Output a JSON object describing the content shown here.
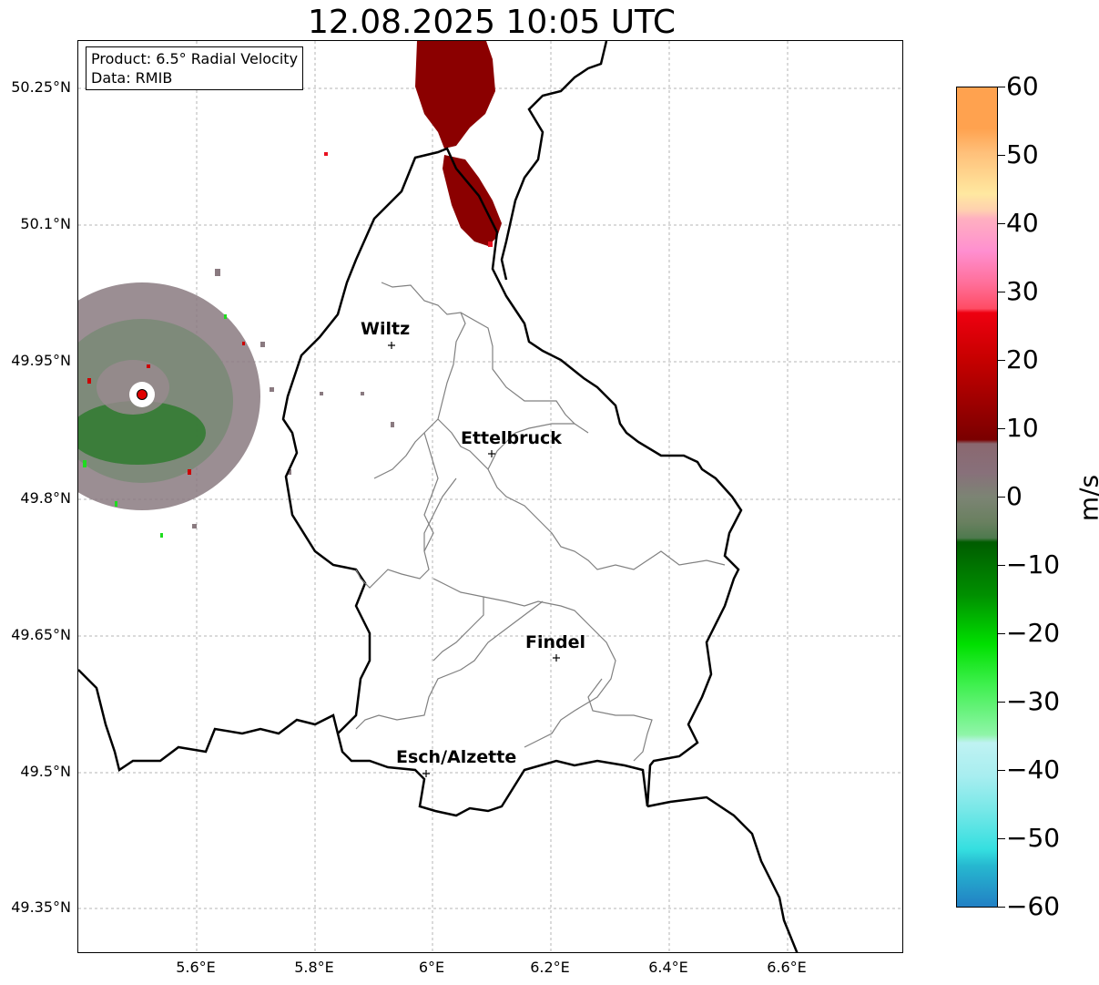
{
  "title": "12.08.2025 10:05 UTC",
  "info_box": {
    "product": "Product: 6.5° Radial Velocity",
    "source": "Data: RMIB"
  },
  "lat_ticks": [
    "50.25°N",
    "50.1°N",
    "49.95°N",
    "49.8°N",
    "49.65°N",
    "49.5°N",
    "49.35°N"
  ],
  "lon_ticks": [
    "5.6°E",
    "5.8°E",
    "6°E",
    "6.2°E",
    "6.4°E",
    "6.6°E"
  ],
  "cities": [
    {
      "name": "Wiltz"
    },
    {
      "name": "Ettelbruck"
    },
    {
      "name": "Findel"
    },
    {
      "name": "Esch/Alzette"
    }
  ],
  "colorbar": {
    "unit": "m/s",
    "ticks": [
      "60",
      "50",
      "40",
      "30",
      "20",
      "10",
      "0",
      "−10",
      "−20",
      "−30",
      "−40",
      "−50",
      "−60"
    ],
    "colors": {
      "orange": "#ffa24f",
      "peach": "#ffe8a0",
      "pink": "#ff8fd0",
      "salmon": "#ff4c64",
      "red": "#ee0010",
      "darkred": "#7a0000",
      "mauve": "#8a6870",
      "grayish": "#7c8474",
      "darkgreen": "#005c00",
      "green": "#00e000",
      "lightgreen": "#8ff5a8",
      "lightcyan": "#bff2f2",
      "cyan": "#35dfe0",
      "blue": "#2280c4"
    }
  }
}
